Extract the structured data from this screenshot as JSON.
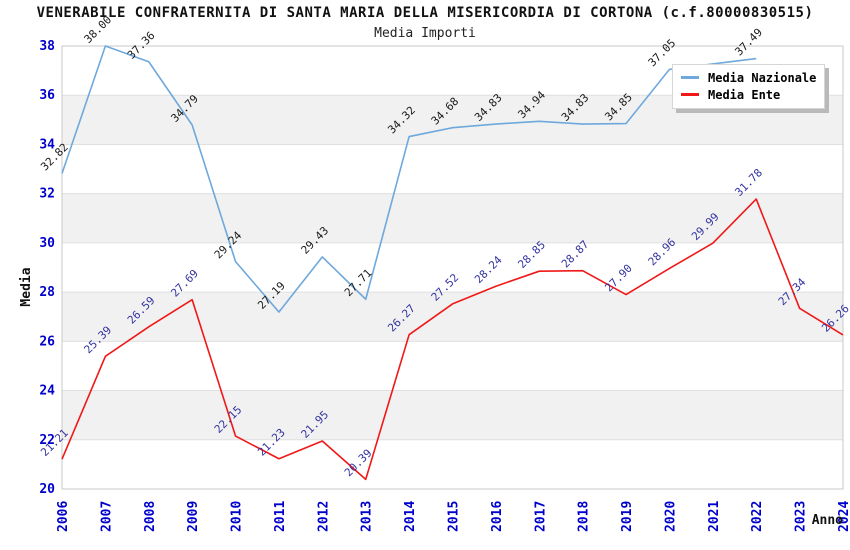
{
  "title": "VENERABILE CONFRATERNITA DI SANTA MARIA DELLA MISERICORDIA DI CORTONA (c.f.80000830515)",
  "subtitle": "Media Importi",
  "colors": {
    "national_line": "#6FA8DC",
    "entity_line": "#F01818",
    "axis_tick_text": "#0000CC",
    "national_label_text": "#1A1A1A",
    "entity_label_text": "#3333A0",
    "band_fill": "#F1F1F1",
    "gridline": "#E0E0E0",
    "plot_border": "#C9C9C9",
    "axis_title_text": "#111111"
  },
  "legend": {
    "position": "top-right",
    "items": [
      {
        "label": "Media Nazionale",
        "color": "#6FA8DC"
      },
      {
        "label": "Media Ente",
        "color": "#F01818"
      }
    ]
  },
  "chart_data": {
    "type": "line",
    "title": "VENERABILE CONFRATERNITA DI SANTA MARIA DELLA MISERICORDIA DI CORTONA (c.f.80000830515)",
    "subtitle": "Media Importi",
    "xlabel": "Anno",
    "ylabel": "Media",
    "ylim": [
      20,
      38
    ],
    "ytick_step": 2,
    "grid": "horizontal-bands",
    "legend_position": "top-right",
    "x": [
      2006,
      2007,
      2008,
      2009,
      2010,
      2011,
      2012,
      2013,
      2014,
      2015,
      2016,
      2017,
      2018,
      2019,
      2020,
      2021,
      2022,
      2023,
      2024
    ],
    "series": [
      {
        "name": "Media Nazionale",
        "color": "#6FA8DC",
        "label_color": "#1A1A1A",
        "note": "2021 value hidden behind legend box; series ends at 2022",
        "values": [
          32.82,
          38.0,
          37.36,
          34.79,
          29.24,
          27.19,
          29.43,
          27.71,
          34.32,
          34.68,
          34.83,
          34.94,
          34.83,
          34.85,
          37.05,
          null,
          37.49,
          null,
          null
        ]
      },
      {
        "name": "Media Ente",
        "color": "#F01818",
        "label_color": "#3333A0",
        "values": [
          21.21,
          25.39,
          26.59,
          27.69,
          22.15,
          21.23,
          21.95,
          20.39,
          26.27,
          27.52,
          28.24,
          28.85,
          28.87,
          27.9,
          28.96,
          29.99,
          31.78,
          27.34,
          26.26
        ]
      }
    ]
  }
}
